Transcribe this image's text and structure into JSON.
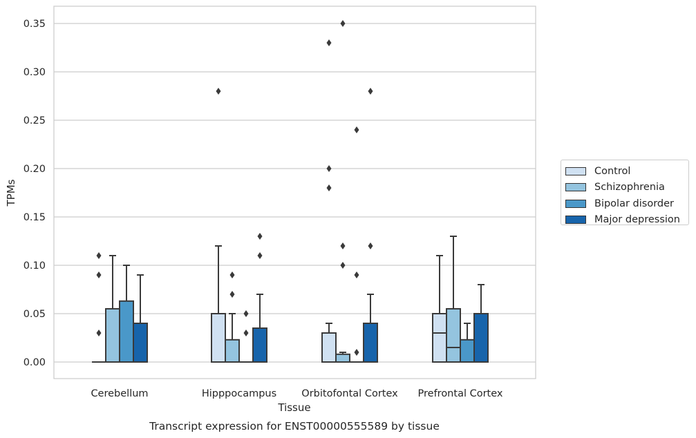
{
  "chart_data": {
    "type": "box",
    "xlabel": "Tissue",
    "ylabel": "TPMs",
    "caption": "Transcript expression for ENST00000555589 by tissue",
    "ylim": [
      -0.017,
      0.368
    ],
    "yticks": [
      0.0,
      0.05,
      0.1,
      0.15,
      0.2,
      0.25,
      0.3,
      0.35
    ],
    "ytick_labels": [
      "0.00",
      "0.05",
      "0.10",
      "0.15",
      "0.20",
      "0.25",
      "0.30",
      "0.35"
    ],
    "categories": [
      "Cerebellum",
      "Hipppocampus",
      "Orbitofontal Cortex",
      "Prefrontal Cortex"
    ],
    "grid": "horizontal",
    "legend_position": "right",
    "series": [
      {
        "name": "Control",
        "color": "#d0e1f2",
        "boxes": [
          {
            "q1": 0.0,
            "median": 0.0,
            "q3": 0.0,
            "whisker_low": 0.0,
            "whisker_high": 0.0,
            "outliers": [
              0.03,
              0.09,
              0.11
            ]
          },
          {
            "q1": 0.0,
            "median": 0.0,
            "q3": 0.05,
            "whisker_low": 0.0,
            "whisker_high": 0.12,
            "outliers": [
              0.28
            ]
          },
          {
            "q1": 0.0,
            "median": 0.0,
            "q3": 0.03,
            "whisker_low": 0.0,
            "whisker_high": 0.04,
            "outliers": [
              0.18,
              0.2,
              0.33
            ]
          },
          {
            "q1": 0.0,
            "median": 0.03,
            "q3": 0.05,
            "whisker_low": 0.0,
            "whisker_high": 0.11,
            "outliers": []
          }
        ]
      },
      {
        "name": "Schizophrenia",
        "color": "#94c4df",
        "boxes": [
          {
            "q1": 0.0,
            "median": 0.0,
            "q3": 0.055,
            "whisker_low": 0.0,
            "whisker_high": 0.11,
            "outliers": []
          },
          {
            "q1": 0.0,
            "median": 0.0,
            "q3": 0.023,
            "whisker_low": 0.0,
            "whisker_high": 0.05,
            "outliers": [
              0.07,
              0.09
            ]
          },
          {
            "q1": 0.0,
            "median": 0.0,
            "q3": 0.008,
            "whisker_low": 0.0,
            "whisker_high": 0.01,
            "outliers": [
              0.1,
              0.12,
              0.35
            ]
          },
          {
            "q1": 0.0,
            "median": 0.015,
            "q3": 0.055,
            "whisker_low": 0.0,
            "whisker_high": 0.13,
            "outliers": []
          }
        ]
      },
      {
        "name": "Bipolar disorder",
        "color": "#4a98c9",
        "boxes": [
          {
            "q1": 0.0,
            "median": 0.0,
            "q3": 0.063,
            "whisker_low": 0.0,
            "whisker_high": 0.1,
            "outliers": []
          },
          {
            "q1": 0.0,
            "median": 0.0,
            "q3": 0.0,
            "whisker_low": 0.0,
            "whisker_high": 0.0,
            "outliers": [
              0.03,
              0.05
            ]
          },
          {
            "q1": 0.0,
            "median": 0.0,
            "q3": 0.0,
            "whisker_low": 0.0,
            "whisker_high": 0.0,
            "outliers": [
              0.01,
              0.09,
              0.24
            ]
          },
          {
            "q1": 0.0,
            "median": 0.0,
            "q3": 0.023,
            "whisker_low": 0.0,
            "whisker_high": 0.04,
            "outliers": []
          }
        ]
      },
      {
        "name": "Major depression",
        "color": "#1764ab",
        "boxes": [
          {
            "q1": 0.0,
            "median": 0.0,
            "q3": 0.04,
            "whisker_low": 0.0,
            "whisker_high": 0.09,
            "outliers": []
          },
          {
            "q1": 0.0,
            "median": 0.0,
            "q3": 0.035,
            "whisker_low": 0.0,
            "whisker_high": 0.07,
            "outliers": [
              0.11,
              0.13
            ]
          },
          {
            "q1": 0.0,
            "median": 0.0,
            "q3": 0.04,
            "whisker_low": 0.0,
            "whisker_high": 0.07,
            "outliers": [
              0.12,
              0.28
            ]
          },
          {
            "q1": 0.0,
            "median": 0.0,
            "q3": 0.05,
            "whisker_low": 0.0,
            "whisker_high": 0.08,
            "outliers": []
          }
        ]
      }
    ]
  }
}
